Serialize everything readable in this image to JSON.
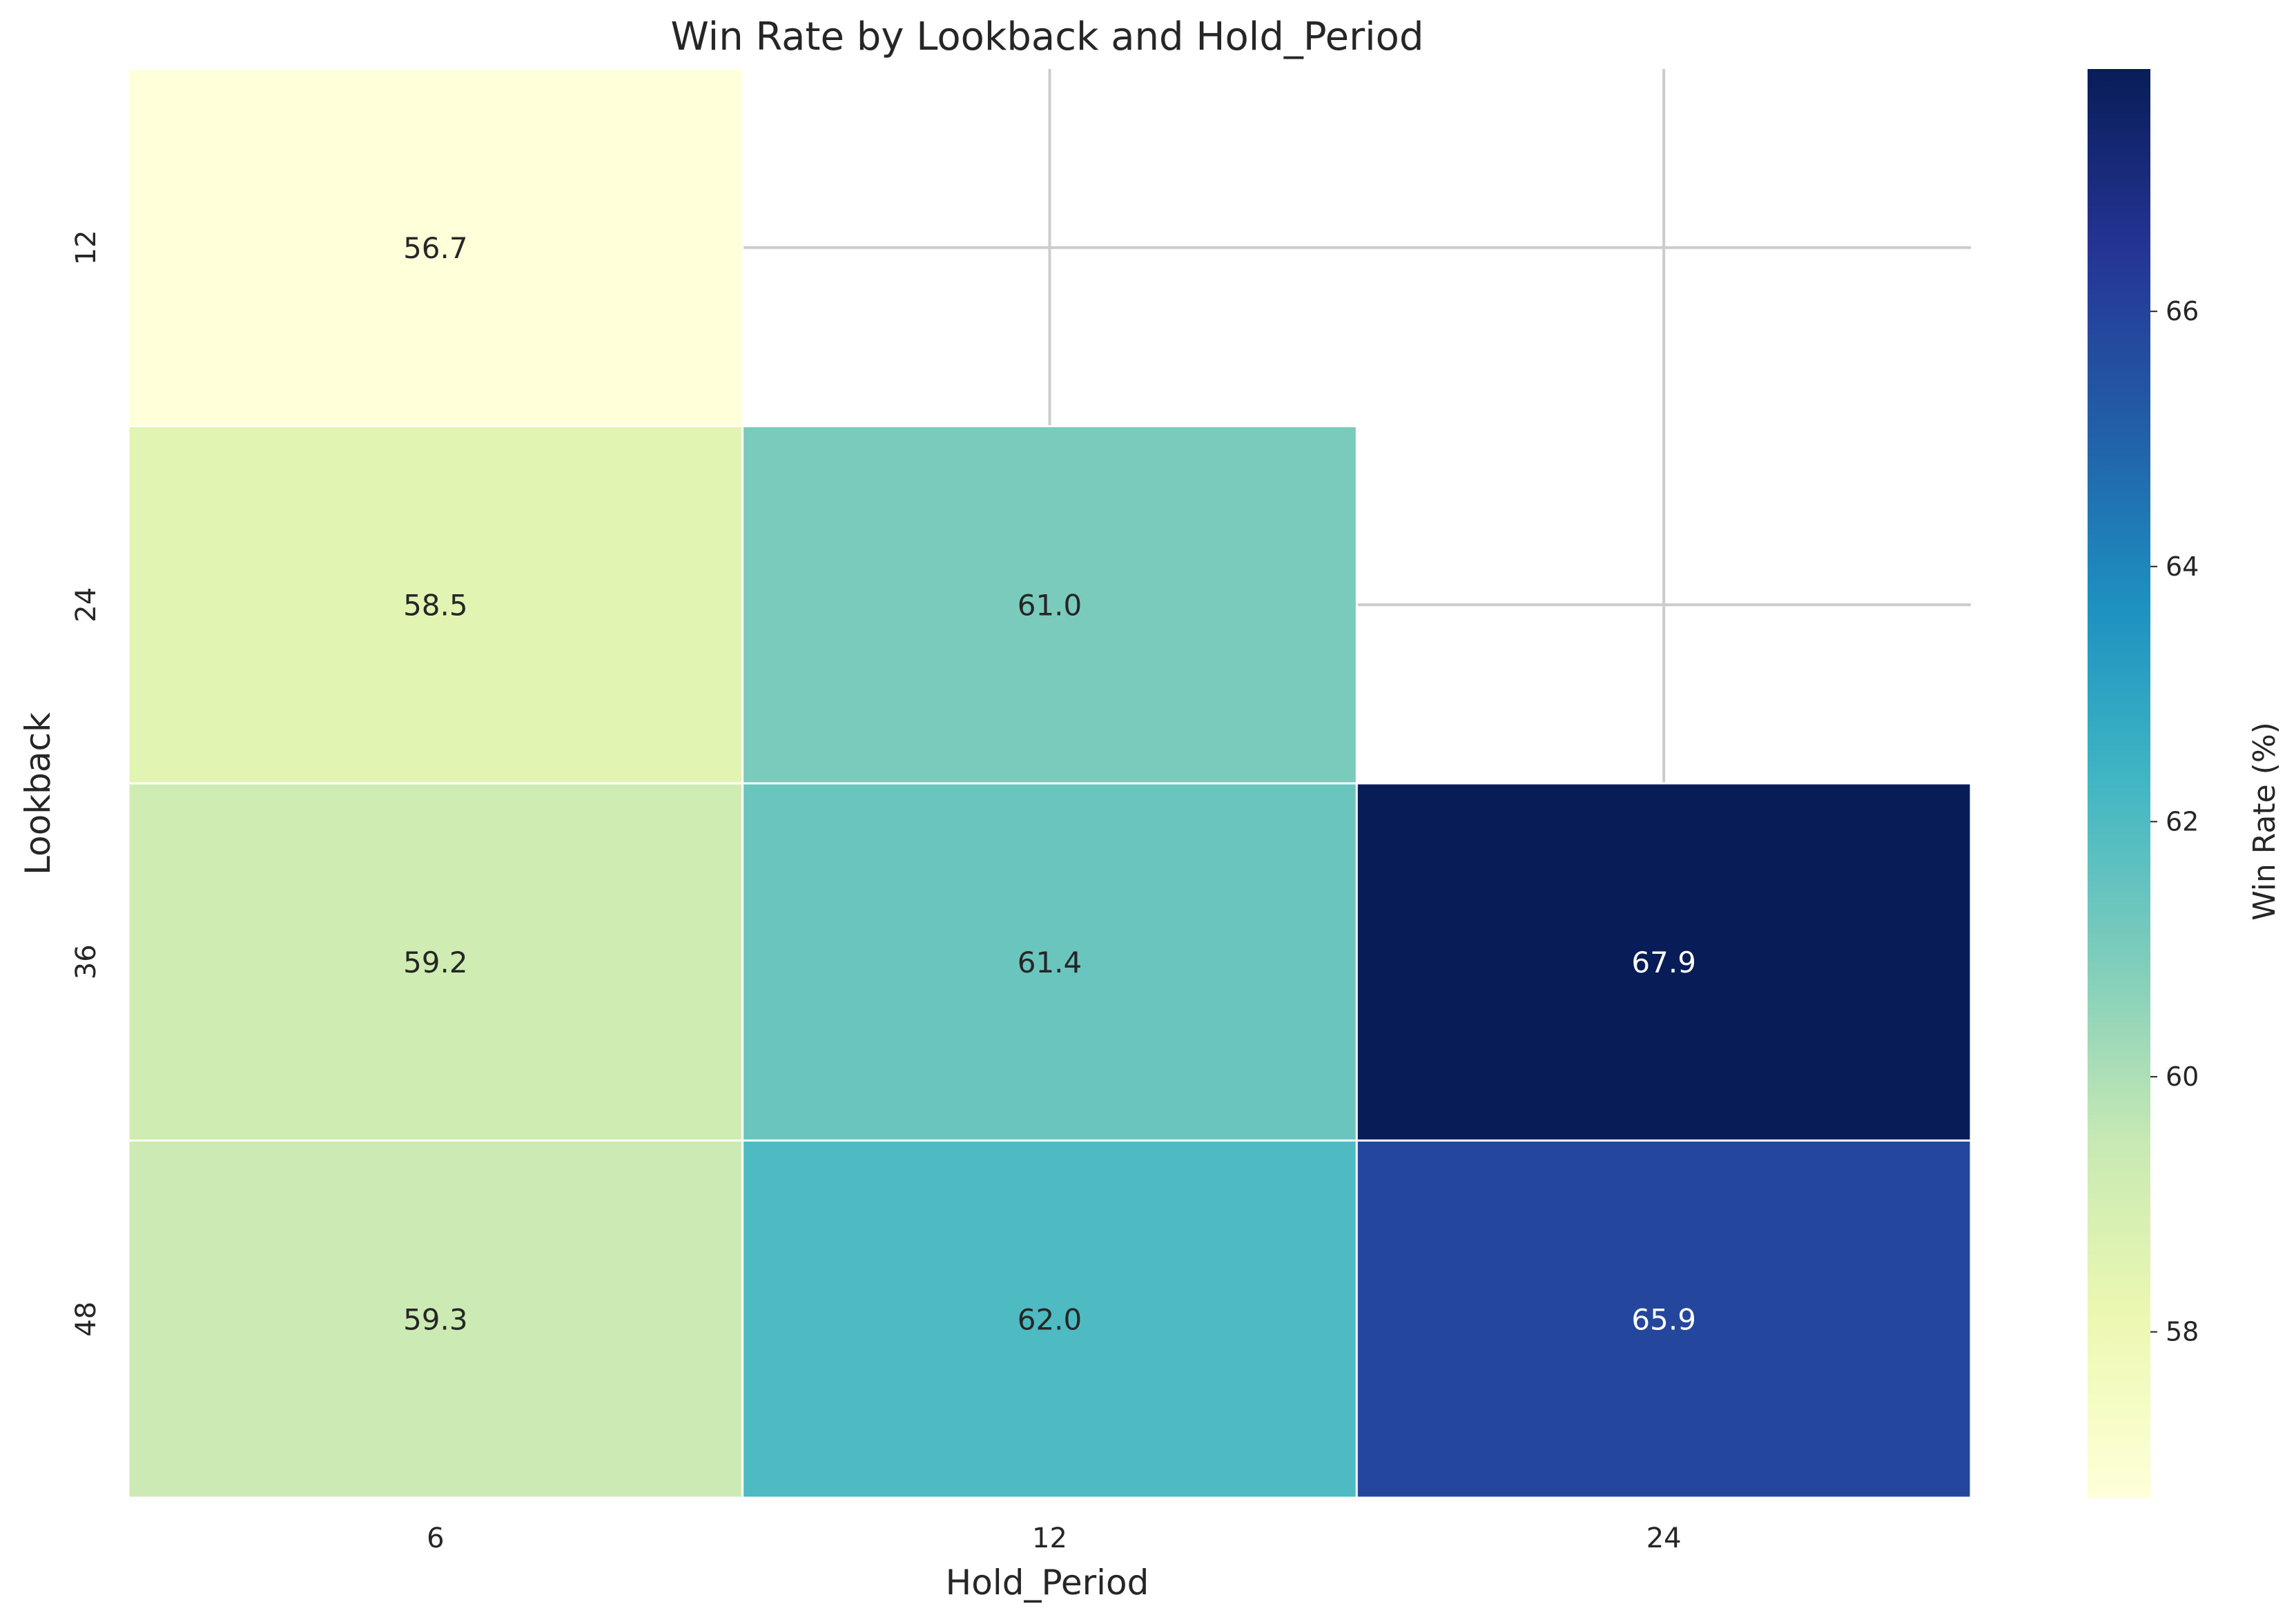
{
  "chart_data": {
    "type": "heatmap",
    "title": "Win Rate by Lookback and Hold_Period",
    "xlabel": "Hold_Period",
    "ylabel": "Lookback",
    "x_categories": [
      "6",
      "12",
      "24"
    ],
    "y_categories": [
      "12",
      "24",
      "36",
      "48"
    ],
    "values": [
      [
        56.7,
        null,
        null
      ],
      [
        58.5,
        61.0,
        null
      ],
      [
        59.2,
        61.4,
        67.9
      ],
      [
        59.3,
        62.0,
        65.9
      ]
    ],
    "value_labels": [
      [
        "56.7",
        "",
        ""
      ],
      [
        "58.5",
        "61.0",
        ""
      ],
      [
        "59.2",
        "61.4",
        "67.9"
      ],
      [
        "59.3",
        "62.0",
        "65.9"
      ]
    ],
    "colorbar": {
      "label": "Win Rate (%)",
      "range": [
        56.7,
        67.9
      ],
      "ticks": [
        58,
        60,
        62,
        64,
        66
      ],
      "tick_labels": [
        "58",
        "60",
        "62",
        "64",
        "66"
      ]
    },
    "colormap": "YlGnBu",
    "colormap_stops": [
      "#ffffd9",
      "#edf8b1",
      "#c7e9b4",
      "#7fcdbb",
      "#41b6c4",
      "#1d91c0",
      "#225ea8",
      "#253494",
      "#081d58"
    ],
    "grid": true
  }
}
